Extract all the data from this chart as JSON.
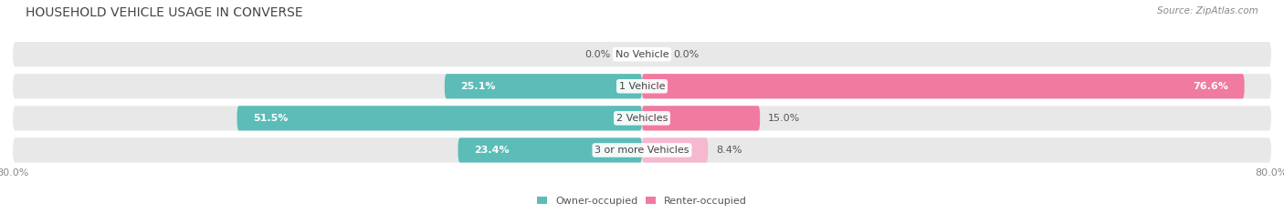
{
  "title": "HOUSEHOLD VEHICLE USAGE IN CONVERSE",
  "source": "Source: ZipAtlas.com",
  "categories": [
    "No Vehicle",
    "1 Vehicle",
    "2 Vehicles",
    "3 or more Vehicles"
  ],
  "owner_values": [
    0.0,
    25.1,
    51.5,
    23.4
  ],
  "renter_values": [
    0.0,
    76.6,
    15.0,
    8.4
  ],
  "owner_color": "#5cbcb8",
  "renter_color": "#f07aa0",
  "renter_color_light": "#f5b8d0",
  "bar_bg_color": "#e8e8e8",
  "axis_min": -80.0,
  "axis_max": 80.0,
  "legend_owner": "Owner-occupied",
  "legend_renter": "Renter-occupied",
  "title_fontsize": 10,
  "source_fontsize": 7.5,
  "label_fontsize": 8,
  "tick_fontsize": 8,
  "bar_height": 0.62,
  "bar_gap": 0.18
}
